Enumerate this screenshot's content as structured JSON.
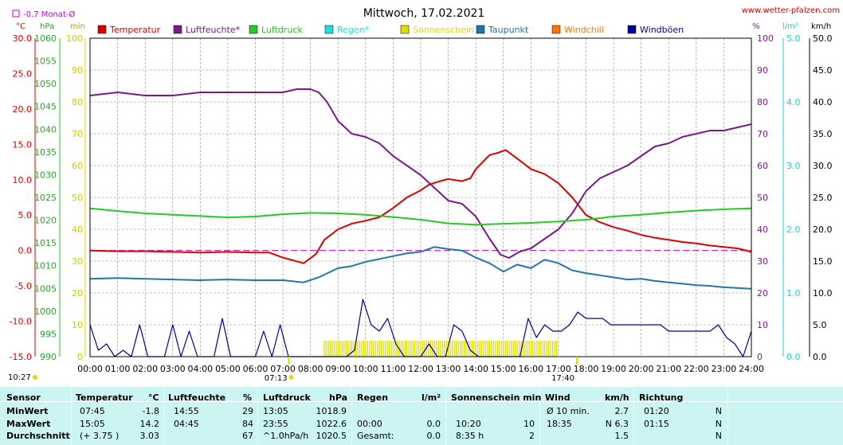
{
  "header": {
    "title": "Mittwoch, 17.02.2021",
    "website": "www.wetter-pfalzen.com",
    "monthly_deviation": "-0.7 Monat-Ø",
    "unit_temp": "°C",
    "unit_pressure": "hPa",
    "unit_minutes": "min",
    "unit_percent": "%",
    "unit_rain": "l/m²",
    "unit_wind": "km/h"
  },
  "legend": [
    {
      "label": "Temperatur",
      "color": "#dd0000"
    },
    {
      "label": "Luftfeuchte*",
      "color": "#7a1a8a"
    },
    {
      "label": "Luftdruck",
      "color": "#22cc22"
    },
    {
      "label": "Regen*",
      "color": "#22dddd"
    },
    {
      "label": "Sonnenschein",
      "color": "#dddd00"
    },
    {
      "label": "Taupunkt",
      "color": "#1f78a8"
    },
    {
      "label": "Windchill",
      "color": "#ff7700"
    },
    {
      "label": "Windböen",
      "color": "#000099"
    }
  ],
  "axes": {
    "temp_ticks": [
      "30.0",
      "25.0",
      "20.0",
      "15.0",
      "10.0",
      "5.0",
      "0.0",
      "-5.0",
      "-10.0",
      "-15.0"
    ],
    "pressure_ticks": [
      "1060",
      "1055",
      "1050",
      "1045",
      "1040",
      "1035",
      "1030",
      "1025",
      "1020",
      "1015",
      "1010",
      "1005",
      "1000",
      "995",
      "990"
    ],
    "minute_ticks": [
      "100",
      "90",
      "80",
      "70",
      "60",
      "50",
      "40",
      "30",
      "20",
      "10",
      "0"
    ],
    "humidity_ticks": [
      "100",
      "90",
      "80",
      "70",
      "60",
      "50",
      "40",
      "30",
      "20",
      "10",
      "0"
    ],
    "rain_ticks": [
      "5.0",
      "4.0",
      "3.0",
      "2.0",
      "1.0",
      "0.0"
    ],
    "wind_ticks": [
      "50.0",
      "45.0",
      "40.0",
      "35.0",
      "30.0",
      "25.0",
      "20.0",
      "15.0",
      "10.0",
      "5.0",
      "0.0"
    ],
    "time_ticks": [
      "00:00",
      "01:00",
      "02:00",
      "03:00",
      "04:00",
      "05:00",
      "06:00",
      "07:00",
      "08:00",
      "09:00",
      "10:00",
      "11:00",
      "12:00",
      "13:00",
      "14:00",
      "15:00",
      "16:00",
      "17:00",
      "18:00",
      "19:00",
      "20:00",
      "21:00",
      "22:00",
      "23:00",
      "24:00"
    ],
    "sunrise": "07:13",
    "sunset": "17:40",
    "moon_time": "10:27"
  },
  "chart_data": {
    "type": "line",
    "x_unit": "hours",
    "xlim": [
      0,
      24
    ],
    "temp_ylim": [
      -15,
      30
    ],
    "humidity_ylim": [
      0,
      100
    ],
    "pressure_ylim": [
      990,
      1060
    ],
    "wind_ylim": [
      0,
      50
    ],
    "monthly_avg_temp": 0.0,
    "series": [
      {
        "name": "Temperatur",
        "axis": "temp",
        "color": "#dd0000",
        "x": [
          0,
          1,
          2,
          3,
          4,
          5,
          6,
          6.5,
          7,
          7.75,
          8.2,
          8.5,
          9,
          9.5,
          10,
          10.5,
          11,
          11.5,
          12,
          12.3,
          12.7,
          13,
          13.5,
          13.8,
          14,
          14.5,
          14.8,
          15.08,
          15.5,
          16,
          16.5,
          17,
          17.5,
          18,
          18.5,
          19,
          19.5,
          20,
          20.5,
          21,
          21.5,
          22,
          22.5,
          23,
          23.5,
          24
        ],
        "y": [
          0.0,
          -0.1,
          -0.1,
          -0.2,
          -0.3,
          -0.2,
          -0.3,
          -0.3,
          -1.0,
          -1.8,
          -0.5,
          1.5,
          3.0,
          3.8,
          4.2,
          4.7,
          6.0,
          7.5,
          8.5,
          9.3,
          9.8,
          10.1,
          9.8,
          10.2,
          11.5,
          13.5,
          13.8,
          14.2,
          13.0,
          11.5,
          10.8,
          9.5,
          7.5,
          5.0,
          4.0,
          3.3,
          2.8,
          2.2,
          1.8,
          1.5,
          1.2,
          1.0,
          0.7,
          0.5,
          0.3,
          -0.2
        ]
      },
      {
        "name": "Luftfeuchte*",
        "axis": "humidity",
        "color": "#7a1a8a",
        "x": [
          0,
          1,
          2,
          3,
          4,
          5,
          6,
          7,
          7.5,
          8,
          8.3,
          8.6,
          9,
          9.5,
          10,
          10.5,
          11,
          11.5,
          12,
          12.5,
          13,
          13.5,
          14,
          14.5,
          14.9,
          15.2,
          15.6,
          16,
          16.5,
          17,
          17.5,
          18,
          18.5,
          19,
          19.5,
          20,
          20.5,
          21,
          21.5,
          22,
          22.5,
          23,
          23.5,
          24
        ],
        "y": [
          82,
          83,
          82,
          82,
          83,
          83,
          83,
          83,
          84,
          84,
          83,
          80,
          74,
          70,
          69,
          67,
          63,
          60,
          57,
          53,
          49,
          48,
          44,
          37,
          32,
          31,
          33,
          34,
          37,
          40,
          45,
          52,
          56,
          58,
          60,
          63,
          66,
          67,
          69,
          70,
          71,
          71,
          72,
          73
        ]
      },
      {
        "name": "Luftdruck",
        "axis": "pressure",
        "color": "#22cc22",
        "x": [
          0,
          1,
          2,
          3,
          4,
          5,
          6,
          7,
          8,
          9,
          10,
          11,
          12,
          13,
          14,
          15,
          16,
          17,
          18,
          19,
          20,
          21,
          22,
          23,
          24
        ],
        "y": [
          1022.6,
          1022.0,
          1021.5,
          1021.2,
          1020.9,
          1020.6,
          1020.8,
          1021.3,
          1021.6,
          1021.5,
          1021.2,
          1020.7,
          1020.1,
          1019.3,
          1019.0,
          1019.2,
          1019.4,
          1019.7,
          1020.1,
          1020.8,
          1021.2,
          1021.7,
          1022.1,
          1022.4,
          1022.6
        ]
      },
      {
        "name": "Taupunkt",
        "axis": "temp",
        "color": "#1f78a8",
        "x": [
          0,
          1,
          2,
          3,
          4,
          5,
          6,
          7,
          7.75,
          8.3,
          9,
          9.5,
          10,
          10.5,
          11,
          11.5,
          12,
          12.5,
          13,
          13.5,
          14,
          14.5,
          15,
          15.5,
          16,
          16.5,
          17,
          17.5,
          18,
          18.5,
          19,
          19.5,
          20,
          20.5,
          21,
          21.5,
          22,
          22.5,
          23,
          23.5,
          24
        ],
        "y": [
          -4.0,
          -3.9,
          -4.0,
          -4.1,
          -4.2,
          -4.1,
          -4.2,
          -4.2,
          -4.5,
          -3.8,
          -2.5,
          -2.2,
          -1.6,
          -1.2,
          -0.8,
          -0.4,
          -0.2,
          0.5,
          0.2,
          0.0,
          -1.0,
          -1.8,
          -3.0,
          -2.0,
          -2.5,
          -1.3,
          -1.8,
          -2.8,
          -3.2,
          -3.5,
          -3.8,
          -4.1,
          -4.0,
          -4.3,
          -4.5,
          -4.7,
          -4.9,
          -5.0,
          -5.2,
          -5.3,
          -5.4
        ]
      },
      {
        "name": "Windböen",
        "axis": "wind",
        "color": "#000099",
        "x": [
          0,
          0.3,
          0.6,
          0.9,
          1.2,
          1.5,
          1.8,
          2.1,
          2.4,
          2.7,
          3.0,
          3.3,
          3.6,
          3.9,
          4.2,
          4.5,
          4.8,
          5.1,
          5.4,
          5.7,
          6.0,
          6.3,
          6.6,
          6.9,
          7.2,
          7.5,
          8,
          8.5,
          9,
          9.3,
          9.6,
          9.9,
          10.2,
          10.5,
          10.8,
          11.1,
          11.4,
          11.7,
          12.0,
          12.3,
          12.6,
          12.9,
          13.2,
          13.5,
          13.8,
          14.1,
          14.4,
          14.7,
          15.0,
          15.3,
          15.6,
          15.9,
          16.2,
          16.5,
          16.8,
          17.1,
          17.4,
          17.7,
          18.0,
          18.3,
          18.6,
          18.9,
          19.2,
          19.5,
          19.8,
          20.1,
          20.4,
          20.7,
          21.0,
          21.3,
          21.6,
          21.9,
          22.2,
          22.5,
          22.8,
          23.1,
          23.4,
          23.7,
          24.0
        ],
        "y": [
          5,
          1,
          2,
          0,
          1,
          0,
          5,
          0,
          0,
          0,
          5,
          0,
          4,
          0,
          0,
          0,
          6,
          0,
          0,
          0,
          0,
          4,
          0,
          5,
          0,
          0,
          0,
          0,
          0,
          0,
          1,
          9,
          5,
          4,
          6,
          2,
          0,
          0,
          0,
          2,
          0,
          0,
          5,
          4,
          1,
          0,
          0,
          0,
          0,
          0,
          0,
          6,
          3,
          5,
          4,
          4,
          5,
          7,
          6,
          6,
          6,
          5,
          5,
          5,
          5,
          5,
          5,
          5,
          4,
          4,
          4,
          4,
          4,
          4,
          5,
          3,
          2,
          0,
          4
        ]
      },
      {
        "name": "Sonnenschein",
        "axis": "minutes",
        "color": "#dddd00",
        "x": [
          8.75,
          9.25,
          9.75,
          10.25,
          10.75,
          11.25,
          11.75,
          12.25,
          12.75,
          13.25,
          13.75,
          14.25,
          14.75,
          15.25,
          15.75,
          16.25,
          16.75
        ],
        "y": [
          5,
          5,
          5,
          5,
          5,
          5,
          5,
          5,
          5,
          5,
          5,
          5,
          5,
          5,
          5,
          5,
          5
        ]
      }
    ]
  },
  "stats": {
    "headers": {
      "sensor": "Sensor",
      "temp": "Temperatur",
      "temp_unit": "°C",
      "humidity": "Luftfeuchte",
      "humidity_unit": "%",
      "pressure": "Luftdruck",
      "pressure_unit": "hPa",
      "rain": "Regen",
      "rain_unit": "l/m²",
      "sun": "Sonnenschein min",
      "wind": "Wind",
      "wind_unit": "km/h",
      "dir": "Richtung"
    },
    "rows": [
      {
        "label": "MinWert",
        "temp_time": "07:45",
        "temp_val": "-1.8",
        "hum_time": "14:55",
        "hum_val": "29",
        "press_time": "13:05",
        "press_val": "1018.9",
        "rain_time": "",
        "rain_val": "",
        "sun_time": "",
        "sun_val": "",
        "wind_time": "Ø 10 min.",
        "wind_val": "2.7",
        "dir_time": "01:20",
        "dir_val": "N"
      },
      {
        "label": "MaxWert",
        "temp_time": "15:05",
        "temp_val": "14.2",
        "hum_time": "04:45",
        "hum_val": "84",
        "press_time": "23:55",
        "press_val": "1022.6",
        "rain_time": "00:00",
        "rain_val": "0.0",
        "sun_time": "10:20",
        "sun_val": "10",
        "wind_time": "18:35",
        "wind_val": "N 6.3",
        "dir_time": "01:15",
        "dir_val": "N"
      },
      {
        "label": "Durchschnitt",
        "temp_time": "(+ 3.75 )",
        "temp_val": "3.03",
        "hum_time": "",
        "hum_val": "67",
        "press_time": "^1.0hPa/h",
        "press_val": "1020.5",
        "rain_time": "Gesamt:",
        "rain_val": "0.0",
        "sun_time": "8:35 h",
        "sun_val": "2",
        "wind_time": "",
        "wind_val": "1.5",
        "dir_time": "",
        "dir_val": "N"
      }
    ]
  }
}
